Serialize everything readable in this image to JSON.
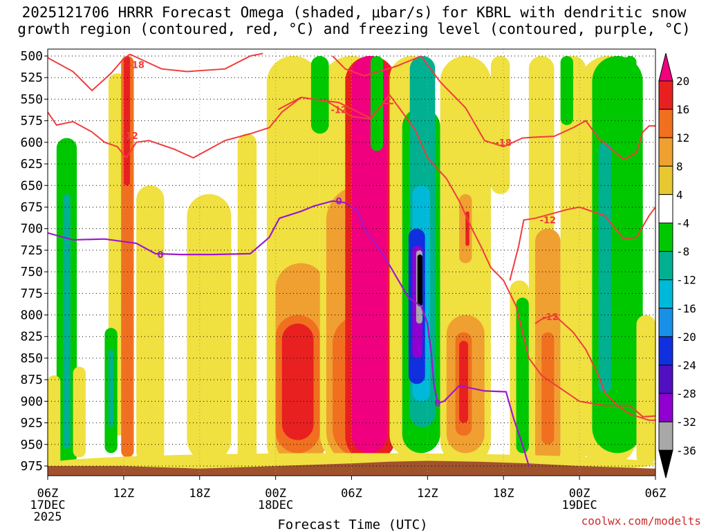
{
  "title_line1": "2025121706 HRRR Forecast Omega (shaded, μbar/s) for KBRL with dendritic snow",
  "title_line2": "growth region (contoured, red, °C) and freezing level (contoured, purple, °C)",
  "credit": "coolwx.com/modelts",
  "chart_data": {
    "type": "heatmap",
    "title": "2025121706 HRRR Forecast Omega (shaded, μbar/s) for KBRL with dendritic snow growth region (contoured, red, °C) and freezing level (contoured, purple, °C)",
    "xlabel": "Forecast Time (UTC)",
    "ylabel": "",
    "x_range_hours": [
      0,
      48
    ],
    "y_range_mb": [
      500,
      985
    ],
    "x_ticks": [
      {
        "hour": 0,
        "label": "06Z",
        "date": "17DEC",
        "year": "2025"
      },
      {
        "hour": 6,
        "label": "12Z"
      },
      {
        "hour": 12,
        "label": "18Z"
      },
      {
        "hour": 18,
        "label": "00Z",
        "date": "18DEC"
      },
      {
        "hour": 24,
        "label": "06Z"
      },
      {
        "hour": 30,
        "label": "12Z"
      },
      {
        "hour": 36,
        "label": "18Z"
      },
      {
        "hour": 42,
        "label": "00Z",
        "date": "19DEC"
      },
      {
        "hour": 48,
        "label": "06Z"
      }
    ],
    "y_ticks": [
      500,
      525,
      550,
      575,
      600,
      625,
      650,
      675,
      700,
      725,
      750,
      775,
      800,
      825,
      850,
      875,
      900,
      925,
      950,
      975
    ],
    "colorbar": {
      "labels": [
        "20",
        "16",
        "12",
        "8",
        "4",
        "-4",
        "-8",
        "-12",
        "-16",
        "-20",
        "-24",
        "-28",
        "-32",
        "-36"
      ],
      "colors": [
        "#f0007f",
        "#e82020",
        "#f07020",
        "#f0a030",
        "#e8c830",
        "#f0e040",
        "#ffffff",
        "#00c800",
        "#00b090",
        "#00b8d8",
        "#1890e8",
        "#1030e0",
        "#5010c0",
        "#9000d0",
        "#a8a8a8",
        "#000000"
      ]
    },
    "omega_cells": [
      {
        "t0": 0.7,
        "t1": 2.3,
        "p0": 595,
        "p1": 975,
        "v": -6
      },
      {
        "t0": 1.2,
        "t1": 1.8,
        "p0": 660,
        "p1": 955,
        "v": -10
      },
      {
        "t0": 4.8,
        "t1": 6.2,
        "p0": 520,
        "p1": 940,
        "v": 6
      },
      {
        "t0": 5.8,
        "t1": 6.8,
        "p0": 500,
        "p1": 965,
        "v": 14
      },
      {
        "t0": 6.0,
        "t1": 6.5,
        "p0": 500,
        "p1": 650,
        "v": 17
      },
      {
        "t0": 4.5,
        "t1": 5.5,
        "p0": 815,
        "p1": 960,
        "v": -7
      },
      {
        "t0": 4.8,
        "t1": 5.2,
        "p0": 840,
        "p1": 930,
        "v": -10
      },
      {
        "t0": 7.0,
        "t1": 9.2,
        "p0": 650,
        "p1": 975,
        "v": 5
      },
      {
        "t0": 2.0,
        "t1": 3.0,
        "p0": 860,
        "p1": 965,
        "v": 5
      },
      {
        "t0": 0.0,
        "t1": 1.0,
        "p0": 870,
        "p1": 985,
        "v": 5
      },
      {
        "t0": 11.0,
        "t1": 14.5,
        "p0": 660,
        "p1": 970,
        "v": 5
      },
      {
        "t0": 12.0,
        "t1": 13.5,
        "p0": 780,
        "p1": 930,
        "v": 7
      },
      {
        "t0": 15.0,
        "t1": 16.5,
        "p0": 590,
        "p1": 975,
        "v": 5
      },
      {
        "t0": 17.3,
        "t1": 21.5,
        "p0": 500,
        "p1": 980,
        "v": 6
      },
      {
        "t0": 18.0,
        "t1": 22.0,
        "p0": 740,
        "p1": 975,
        "v": 10
      },
      {
        "t0": 18.0,
        "t1": 21.5,
        "p0": 800,
        "p1": 960,
        "v": 14
      },
      {
        "t0": 18.5,
        "t1": 21.0,
        "p0": 810,
        "p1": 945,
        "v": 18
      },
      {
        "t0": 21.5,
        "t1": 26.5,
        "p0": 500,
        "p1": 975,
        "v": 6
      },
      {
        "t0": 22.0,
        "t1": 27.5,
        "p0": 650,
        "p1": 975,
        "v": 10
      },
      {
        "t0": 22.5,
        "t1": 27.0,
        "p0": 800,
        "p1": 965,
        "v": 14
      },
      {
        "t0": 23.5,
        "t1": 27.5,
        "p0": 500,
        "p1": 970,
        "v": 18
      },
      {
        "t0": 24.0,
        "t1": 26.8,
        "p0": 500,
        "p1": 960,
        "v": 22
      },
      {
        "t0": 20.8,
        "t1": 22.2,
        "p0": 500,
        "p1": 590,
        "v": -7
      },
      {
        "t0": 25.5,
        "t1": 26.5,
        "p0": 500,
        "p1": 610,
        "v": -5
      },
      {
        "t0": 27.0,
        "t1": 30.5,
        "p0": 500,
        "p1": 965,
        "v": 5
      },
      {
        "t0": 28.0,
        "t1": 31.0,
        "p0": 560,
        "p1": 960,
        "v": -6
      },
      {
        "t0": 28.6,
        "t1": 30.6,
        "p0": 500,
        "p1": 930,
        "v": -10
      },
      {
        "t0": 28.8,
        "t1": 30.2,
        "p0": 650,
        "p1": 900,
        "v": -15
      },
      {
        "t0": 28.5,
        "t1": 29.8,
        "p0": 700,
        "p1": 880,
        "v": -22
      },
      {
        "t0": 28.8,
        "t1": 29.6,
        "p0": 720,
        "p1": 850,
        "v": -28
      },
      {
        "t0": 29.1,
        "t1": 29.6,
        "p0": 725,
        "p1": 810,
        "v": -33
      },
      {
        "t0": 29.2,
        "t1": 29.6,
        "p0": 730,
        "p1": 790,
        "v": -40
      },
      {
        "t0": 31.0,
        "t1": 35.0,
        "p0": 500,
        "p1": 975,
        "v": 5
      },
      {
        "t0": 31.5,
        "t1": 34.5,
        "p0": 800,
        "p1": 960,
        "v": 9
      },
      {
        "t0": 32.2,
        "t1": 33.5,
        "p0": 820,
        "p1": 940,
        "v": 15
      },
      {
        "t0": 32.5,
        "t1": 33.2,
        "p0": 830,
        "p1": 925,
        "v": 19
      },
      {
        "t0": 32.5,
        "t1": 33.5,
        "p0": 660,
        "p1": 740,
        "v": 10
      },
      {
        "t0": 33.0,
        "t1": 33.3,
        "p0": 680,
        "p1": 720,
        "v": 16
      },
      {
        "t0": 35.0,
        "t1": 36.5,
        "p0": 500,
        "p1": 660,
        "v": 5
      },
      {
        "t0": 36.5,
        "t1": 38.0,
        "p0": 760,
        "p1": 975,
        "v": 5
      },
      {
        "t0": 37.0,
        "t1": 38.0,
        "p0": 780,
        "p1": 960,
        "v": -6
      },
      {
        "t0": 38.0,
        "t1": 40.0,
        "p0": 500,
        "p1": 975,
        "v": 5
      },
      {
        "t0": 38.5,
        "t1": 40.5,
        "p0": 700,
        "p1": 975,
        "v": 9
      },
      {
        "t0": 39.0,
        "t1": 40.0,
        "p0": 820,
        "p1": 950,
        "v": 14
      },
      {
        "t0": 40.5,
        "t1": 42.5,
        "p0": 500,
        "p1": 975,
        "v": 5
      },
      {
        "t0": 40.5,
        "t1": 41.5,
        "p0": 500,
        "p1": 580,
        "v": -6
      },
      {
        "t0": 42.0,
        "t1": 46.5,
        "p0": 500,
        "p1": 975,
        "v": 5
      },
      {
        "t0": 43.0,
        "t1": 47.0,
        "p0": 500,
        "p1": 960,
        "v": -7
      },
      {
        "t0": 43.5,
        "t1": 44.5,
        "p0": 600,
        "p1": 890,
        "v": -10
      },
      {
        "t0": 45.5,
        "t1": 46.5,
        "p0": 500,
        "p1": 610,
        "v": -6
      },
      {
        "t0": 46.5,
        "t1": 48.0,
        "p0": 800,
        "p1": 975,
        "v": 5
      },
      {
        "t0": 0.0,
        "t1": 48.0,
        "p0": 960,
        "p1": 985,
        "v": 5
      }
    ],
    "freezing_level": {
      "label": "0",
      "points": [
        [
          0,
          705
        ],
        [
          2,
          713
        ],
        [
          4.5,
          712
        ],
        [
          7,
          717
        ],
        [
          8.5,
          729
        ],
        [
          10.5,
          730
        ],
        [
          13,
          730
        ],
        [
          16,
          729
        ],
        [
          17.5,
          710
        ],
        [
          18.3,
          688
        ],
        [
          20,
          680
        ],
        [
          21,
          674
        ],
        [
          22.5,
          668
        ],
        [
          23.5,
          670
        ],
        [
          24.5,
          680
        ],
        [
          25,
          700
        ],
        [
          26.5,
          730
        ],
        [
          27.5,
          755
        ],
        [
          28.5,
          780
        ],
        [
          29.5,
          790
        ],
        [
          30,
          810
        ],
        [
          30.3,
          845
        ],
        [
          30.5,
          880
        ],
        [
          30.8,
          902
        ],
        [
          31.3,
          900
        ],
        [
          32.5,
          882
        ],
        [
          34.5,
          888
        ],
        [
          36.2,
          889
        ],
        [
          36.8,
          920
        ],
        [
          37.5,
          950
        ],
        [
          38,
          975
        ]
      ]
    },
    "dgz_contours": [
      {
        "label": "-18",
        "points": [
          [
            0,
            502
          ],
          [
            2,
            518
          ],
          [
            3.5,
            540
          ],
          [
            5,
            520
          ],
          [
            6,
            503
          ],
          [
            6.5,
            498
          ]
        ]
      },
      {
        "label": "-18",
        "points": [
          [
            6.5,
            498
          ],
          [
            9,
            515
          ],
          [
            11,
            518
          ],
          [
            14,
            515
          ],
          [
            16,
            500
          ],
          [
            17,
            497
          ]
        ]
      },
      {
        "label": "-12",
        "points": [
          [
            0,
            565
          ],
          [
            0.7,
            580
          ],
          [
            2,
            576
          ],
          [
            3.5,
            588
          ],
          [
            4.5,
            600
          ],
          [
            5.5,
            605
          ],
          [
            6.2,
            618
          ],
          [
            7,
            600
          ],
          [
            8,
            598
          ],
          [
            10,
            608
          ],
          [
            11.5,
            618
          ],
          [
            12.5,
            610
          ],
          [
            14,
            598
          ],
          [
            16,
            590
          ],
          [
            17.5,
            583
          ],
          [
            18.5,
            565
          ],
          [
            20,
            548
          ],
          [
            22,
            552
          ],
          [
            24,
            570
          ],
          [
            25.5,
            573
          ],
          [
            27,
            545
          ],
          [
            28,
            565
          ],
          [
            29,
            585
          ],
          [
            30,
            618
          ],
          [
            31.5,
            642
          ],
          [
            32.5,
            668
          ],
          [
            33.5,
            700
          ],
          [
            34.2,
            720
          ],
          [
            35,
            745
          ],
          [
            36,
            760
          ],
          [
            37,
            790
          ],
          [
            38,
            850
          ],
          [
            39,
            870
          ],
          [
            40,
            880
          ],
          [
            42,
            900
          ],
          [
            44,
            905
          ],
          [
            46,
            905
          ],
          [
            47,
            918
          ],
          [
            48,
            917
          ]
        ]
      },
      {
        "label": "-12",
        "points": [
          [
            18.2,
            562
          ],
          [
            20,
            548
          ],
          [
            23,
            554
          ],
          [
            25.5,
            572
          ],
          [
            26.5,
            555
          ],
          [
            27.3,
            555
          ]
        ]
      },
      {
        "label": "-18",
        "points": [
          [
            22.5,
            500
          ],
          [
            23.5,
            515
          ],
          [
            25,
            523
          ],
          [
            27.5,
            512
          ],
          [
            29.5,
            500
          ]
        ]
      },
      {
        "label": "-18",
        "points": [
          [
            29.5,
            500
          ],
          [
            31,
            530
          ],
          [
            33,
            560
          ],
          [
            34.5,
            598
          ],
          [
            36,
            605
          ],
          [
            37.5,
            595
          ],
          [
            38.5,
            594
          ],
          [
            40,
            593
          ],
          [
            41.5,
            583
          ],
          [
            42.5,
            575
          ],
          [
            43.5,
            595
          ],
          [
            45.5,
            620
          ],
          [
            46.5,
            612
          ],
          [
            47,
            588
          ],
          [
            47.5,
            581
          ],
          [
            48,
            581
          ]
        ]
      },
      {
        "label": "-12",
        "points": [
          [
            36.5,
            760
          ],
          [
            37.2,
            720
          ],
          [
            37.6,
            690
          ],
          [
            38.5,
            688
          ],
          [
            40.5,
            680
          ],
          [
            41,
            678
          ],
          [
            42,
            675
          ],
          [
            44,
            685
          ],
          [
            45.5,
            712
          ],
          [
            46.5,
            710
          ],
          [
            47.5,
            685
          ],
          [
            48,
            675
          ]
        ]
      },
      {
        "label": "-12",
        "points": [
          [
            38.5,
            810
          ],
          [
            39,
            805
          ],
          [
            40,
            800
          ],
          [
            41.5,
            820
          ],
          [
            42.5,
            840
          ],
          [
            43.5,
            870
          ],
          [
            44,
            890
          ],
          [
            45,
            905
          ],
          [
            46,
            915
          ],
          [
            47.5,
            922
          ],
          [
            48,
            922
          ]
        ]
      }
    ],
    "contour_labels": [
      {
        "t": 7.0,
        "p": 510,
        "text": "-18"
      },
      {
        "t": 6.5,
        "p": 592,
        "text": "-12"
      },
      {
        "t": 23.0,
        "p": 562,
        "text": "-12"
      },
      {
        "t": 36.0,
        "p": 600,
        "text": "-18"
      },
      {
        "t": 39.5,
        "p": 690,
        "text": "-12"
      },
      {
        "t": 39.7,
        "p": 802,
        "text": "-12"
      },
      {
        "t": 8.9,
        "p": 730,
        "text": "0"
      },
      {
        "t": 23.0,
        "p": 668,
        "text": "0"
      },
      {
        "t": 30.8,
        "p": 902,
        "text": "0"
      }
    ],
    "terrain": [
      [
        0,
        975
      ],
      [
        6,
        975
      ],
      [
        12,
        978
      ],
      [
        18,
        975
      ],
      [
        24,
        972
      ],
      [
        27,
        970
      ],
      [
        30,
        969
      ],
      [
        34,
        970
      ],
      [
        38,
        972
      ],
      [
        42,
        975
      ],
      [
        48,
        978
      ]
    ]
  }
}
